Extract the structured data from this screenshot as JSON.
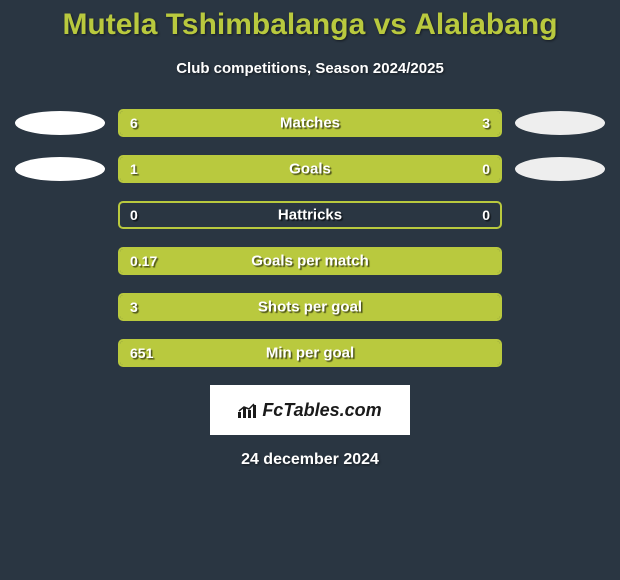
{
  "title": "Mutela Tshimbalanga vs Alalabang",
  "subtitle": "Club competitions, Season 2024/2025",
  "date": "24 december 2024",
  "logo_text": "FcTables.com",
  "colors": {
    "background": "#2a3642",
    "accent": "#b9c93e",
    "text_white": "#ffffff",
    "avatar_left": "#ffffff",
    "avatar_right": "#eeeeee",
    "logo_bg": "#ffffff",
    "logo_text": "#1a1a1a"
  },
  "stats": [
    {
      "label": "Matches",
      "left_value": "6",
      "right_value": "3",
      "left_pct": 66.6,
      "right_pct": 33.3,
      "show_avatars": true
    },
    {
      "label": "Goals",
      "left_value": "1",
      "right_value": "0",
      "left_pct": 100,
      "right_pct": 0,
      "show_avatars": true
    },
    {
      "label": "Hattricks",
      "left_value": "0",
      "right_value": "0",
      "left_pct": 0,
      "right_pct": 0,
      "show_avatars": false
    },
    {
      "label": "Goals per match",
      "left_value": "0.17",
      "right_value": "",
      "left_pct": 100,
      "right_pct": 0,
      "show_avatars": false
    },
    {
      "label": "Shots per goal",
      "left_value": "3",
      "right_value": "",
      "left_pct": 100,
      "right_pct": 0,
      "show_avatars": false
    },
    {
      "label": "Min per goal",
      "left_value": "651",
      "right_value": "",
      "left_pct": 100,
      "right_pct": 0,
      "show_avatars": false
    }
  ]
}
